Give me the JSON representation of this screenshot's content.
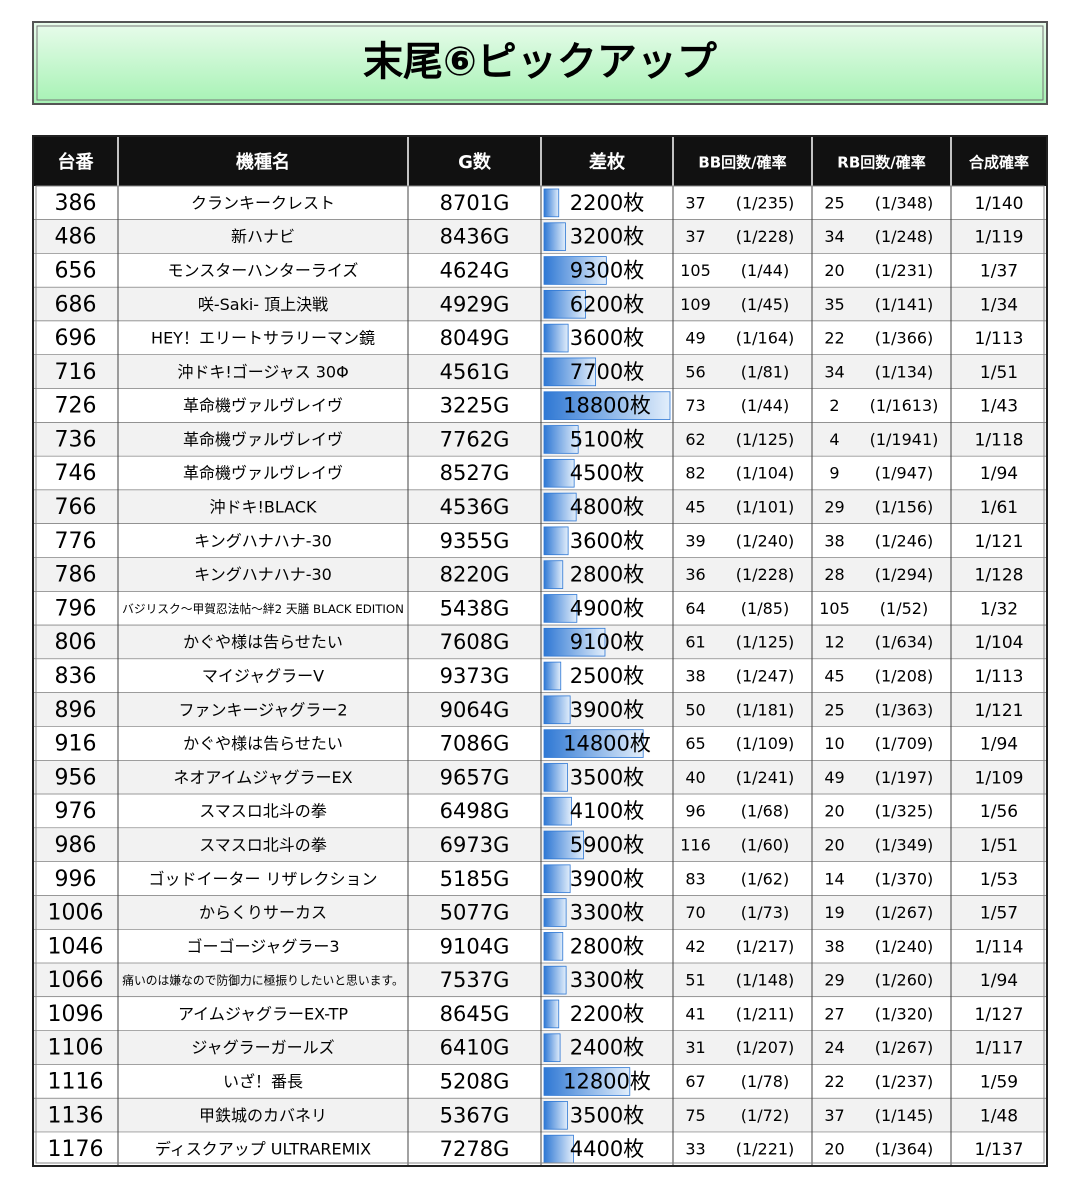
{
  "header": {
    "title": "末尾⑥ピックアップ"
  },
  "table": {
    "columns": [
      "台番",
      "機種名",
      "G数",
      "差枚",
      "BB回数/確率",
      "RB回数/確率",
      "合成確率"
    ],
    "rows": [
      {
        "no": 386,
        "name": "クランキークレスト",
        "games": "8701G",
        "diff": {
          "value": 2200,
          "label": "2200枚"
        },
        "bb": 37,
        "bb_rate": "(1/235)",
        "rb": 25,
        "rb_rate": "(1/348)",
        "total": "1/140"
      },
      {
        "no": 486,
        "name": "新ハナビ",
        "games": "8436G",
        "diff": {
          "value": 3200,
          "label": "3200枚"
        },
        "bb": 37,
        "bb_rate": "(1/228)",
        "rb": 34,
        "rb_rate": "(1/248)",
        "total": "1/119"
      },
      {
        "no": 656,
        "name": "モンスターハンターライズ",
        "games": "4624G",
        "diff": {
          "value": 9300,
          "label": "9300枚"
        },
        "bb": 105,
        "bb_rate": "(1/44)",
        "rb": 20,
        "rb_rate": "(1/231)",
        "total": "1/37"
      },
      {
        "no": 686,
        "name": "咲-Saki- 頂上決戦",
        "games": "4929G",
        "diff": {
          "value": 6200,
          "label": "6200枚"
        },
        "bb": 109,
        "bb_rate": "(1/45)",
        "rb": 35,
        "rb_rate": "(1/141)",
        "total": "1/34"
      },
      {
        "no": 696,
        "name": "HEY！エリートサラリーマン鏡",
        "games": "8049G",
        "diff": {
          "value": 3600,
          "label": "3600枚"
        },
        "bb": 49,
        "bb_rate": "(1/164)",
        "rb": 22,
        "rb_rate": "(1/366)",
        "total": "1/113"
      },
      {
        "no": 716,
        "name": "沖ドキ!ゴージャス 30Φ",
        "games": "4561G",
        "diff": {
          "value": 7700,
          "label": "7700枚"
        },
        "bb": 56,
        "bb_rate": "(1/81)",
        "rb": 34,
        "rb_rate": "(1/134)",
        "total": "1/51"
      },
      {
        "no": 726,
        "name": "革命機ヴァルヴレイヴ",
        "games": "3225G",
        "diff": {
          "value": 18800,
          "label": "18800枚"
        },
        "bb": 73,
        "bb_rate": "(1/44)",
        "rb": 2,
        "rb_rate": "(1/1613)",
        "total": "1/43"
      },
      {
        "no": 736,
        "name": "革命機ヴァルヴレイヴ",
        "games": "7762G",
        "diff": {
          "value": 5100,
          "label": "5100枚"
        },
        "bb": 62,
        "bb_rate": "(1/125)",
        "rb": 4,
        "rb_rate": "(1/1941)",
        "total": "1/118"
      },
      {
        "no": 746,
        "name": "革命機ヴァルヴレイヴ",
        "games": "8527G",
        "diff": {
          "value": 4500,
          "label": "4500枚"
        },
        "bb": 82,
        "bb_rate": "(1/104)",
        "rb": 9,
        "rb_rate": "(1/947)",
        "total": "1/94"
      },
      {
        "no": 766,
        "name": "沖ドキ!BLACK",
        "games": "4536G",
        "diff": {
          "value": 4800,
          "label": "4800枚"
        },
        "bb": 45,
        "bb_rate": "(1/101)",
        "rb": 29,
        "rb_rate": "(1/156)",
        "total": "1/61"
      },
      {
        "no": 776,
        "name": "キングハナハナ-30",
        "games": "9355G",
        "diff": {
          "value": 3600,
          "label": "3600枚"
        },
        "bb": 39,
        "bb_rate": "(1/240)",
        "rb": 38,
        "rb_rate": "(1/246)",
        "total": "1/121"
      },
      {
        "no": 786,
        "name": "キングハナハナ-30",
        "games": "8220G",
        "diff": {
          "value": 2800,
          "label": "2800枚"
        },
        "bb": 36,
        "bb_rate": "(1/228)",
        "rb": 28,
        "rb_rate": "(1/294)",
        "total": "1/128"
      },
      {
        "no": 796,
        "name": "バジリスク～甲賀忍法帖～絆2 天膳 BLACK EDITION",
        "games": "5438G",
        "diff": {
          "value": 4900,
          "label": "4900枚"
        },
        "bb": 64,
        "bb_rate": "(1/85)",
        "rb": 105,
        "rb_rate": "(1/52)",
        "total": "1/32"
      },
      {
        "no": 806,
        "name": "かぐや様は告らせたい",
        "games": "7608G",
        "diff": {
          "value": 9100,
          "label": "9100枚"
        },
        "bb": 61,
        "bb_rate": "(1/125)",
        "rb": 12,
        "rb_rate": "(1/634)",
        "total": "1/104"
      },
      {
        "no": 836,
        "name": "マイジャグラーV",
        "games": "9373G",
        "diff": {
          "value": 2500,
          "label": "2500枚"
        },
        "bb": 38,
        "bb_rate": "(1/247)",
        "rb": 45,
        "rb_rate": "(1/208)",
        "total": "1/113"
      },
      {
        "no": 896,
        "name": "ファンキージャグラー2",
        "games": "9064G",
        "diff": {
          "value": 3900,
          "label": "3900枚"
        },
        "bb": 50,
        "bb_rate": "(1/181)",
        "rb": 25,
        "rb_rate": "(1/363)",
        "total": "1/121"
      },
      {
        "no": 916,
        "name": "かぐや様は告らせたい",
        "games": "7086G",
        "diff": {
          "value": 14800,
          "label": "14800枚"
        },
        "bb": 65,
        "bb_rate": "(1/109)",
        "rb": 10,
        "rb_rate": "(1/709)",
        "total": "1/94"
      },
      {
        "no": 956,
        "name": "ネオアイムジャグラーEX",
        "games": "9657G",
        "diff": {
          "value": 3500,
          "label": "3500枚"
        },
        "bb": 40,
        "bb_rate": "(1/241)",
        "rb": 49,
        "rb_rate": "(1/197)",
        "total": "1/109"
      },
      {
        "no": 976,
        "name": "スマスロ北斗の拳",
        "games": "6498G",
        "diff": {
          "value": 4100,
          "label": "4100枚"
        },
        "bb": 96,
        "bb_rate": "(1/68)",
        "rb": 20,
        "rb_rate": "(1/325)",
        "total": "1/56"
      },
      {
        "no": 986,
        "name": "スマスロ北斗の拳",
        "games": "6973G",
        "diff": {
          "value": 5900,
          "label": "5900枚"
        },
        "bb": 116,
        "bb_rate": "(1/60)",
        "rb": 20,
        "rb_rate": "(1/349)",
        "total": "1/51"
      },
      {
        "no": 996,
        "name": "ゴッドイーター リザレクション",
        "games": "5185G",
        "diff": {
          "value": 3900,
          "label": "3900枚"
        },
        "bb": 83,
        "bb_rate": "(1/62)",
        "rb": 14,
        "rb_rate": "(1/370)",
        "total": "1/53"
      },
      {
        "no": 1006,
        "name": "からくりサーカス",
        "games": "5077G",
        "diff": {
          "value": 3300,
          "label": "3300枚"
        },
        "bb": 70,
        "bb_rate": "(1/73)",
        "rb": 19,
        "rb_rate": "(1/267)",
        "total": "1/57"
      },
      {
        "no": 1046,
        "name": "ゴーゴージャグラー3",
        "games": "9104G",
        "diff": {
          "value": 2800,
          "label": "2800枚"
        },
        "bb": 42,
        "bb_rate": "(1/217)",
        "rb": 38,
        "rb_rate": "(1/240)",
        "total": "1/114"
      },
      {
        "no": 1066,
        "name": "痛いのは嫌なので防御力に極振りしたいと思います。",
        "games": "7537G",
        "diff": {
          "value": 3300,
          "label": "3300枚"
        },
        "bb": 51,
        "bb_rate": "(1/148)",
        "rb": 29,
        "rb_rate": "(1/260)",
        "total": "1/94"
      },
      {
        "no": 1096,
        "name": "アイムジャグラーEX-TP",
        "games": "8645G",
        "diff": {
          "value": 2200,
          "label": "2200枚"
        },
        "bb": 41,
        "bb_rate": "(1/211)",
        "rb": 27,
        "rb_rate": "(1/320)",
        "total": "1/127"
      },
      {
        "no": 1106,
        "name": "ジャグラーガールズ",
        "games": "6410G",
        "diff": {
          "value": 2400,
          "label": "2400枚"
        },
        "bb": 31,
        "bb_rate": "(1/207)",
        "rb": 24,
        "rb_rate": "(1/267)",
        "total": "1/117"
      },
      {
        "no": 1116,
        "name": "いざ！番長",
        "games": "5208G",
        "diff": {
          "value": 12800,
          "label": "12800枚"
        },
        "bb": 67,
        "bb_rate": "(1/78)",
        "rb": 22,
        "rb_rate": "(1/237)",
        "total": "1/59"
      },
      {
        "no": 1136,
        "name": "甲鉄城のカバネリ",
        "games": "5367G",
        "diff": {
          "value": 3500,
          "label": "3500枚"
        },
        "bb": 75,
        "bb_rate": "(1/72)",
        "rb": 37,
        "rb_rate": "(1/145)",
        "total": "1/48"
      },
      {
        "no": 1176,
        "name": "ディスクアップ ULTRAREMIX",
        "games": "7278G",
        "diff": {
          "value": 4400,
          "label": "4400枚"
        },
        "bb": 33,
        "bb_rate": "(1/221)",
        "rb": 20,
        "rb_rate": "(1/364)",
        "total": "1/137"
      }
    ]
  }
}
